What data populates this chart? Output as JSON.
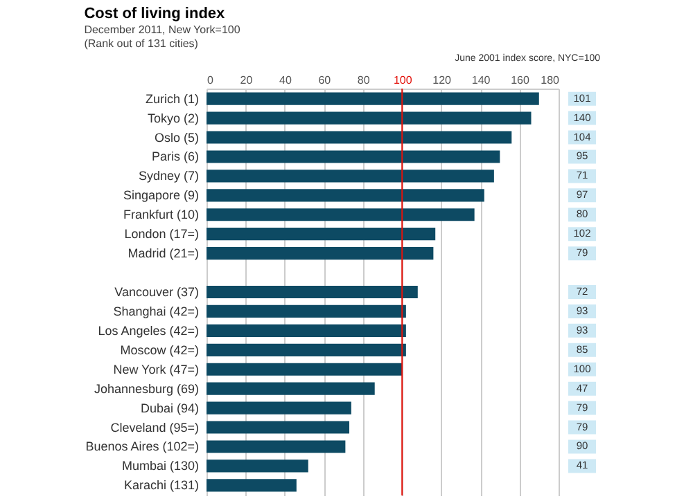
{
  "chart_data": [
    {
      "type": "bar",
      "orientation": "horizontal",
      "title": "Cost of living index",
      "subtitle": "December 2011, New York=100",
      "annotations": [
        "(Rank out of 131 cities)"
      ],
      "categories": [
        "Zurich (1)",
        "Tokyo (2)",
        "Oslo (5)",
        "Paris (6)",
        "Sydney (7)",
        "Singapore (9)",
        "Frankfurt (10)",
        "London (17=)",
        "Madrid (21=)",
        null,
        "Vancouver (37)",
        "Shanghai (42=)",
        "Los Angeles (42=)",
        "Moscow (42=)",
        "New York (47=)",
        "Johannesburg (69)",
        "Dubai (94)",
        "Cleveland (95=)",
        "Buenos Aires (102=)",
        "Mumbai (130)",
        "Karachi (131)"
      ],
      "series": [
        {
          "color": "#0d4a63",
          "values": [
            170,
            166,
            156,
            150,
            147,
            142,
            137,
            117,
            116,
            null,
            108,
            102,
            102,
            102,
            100,
            86,
            74,
            73,
            71,
            52,
            46
          ]
        }
      ],
      "xlim": [
        0,
        180
      ],
      "xticks": [
        0,
        20,
        40,
        60,
        80,
        100,
        120,
        140,
        160,
        180
      ],
      "grid": "x",
      "ref_lines": [
        {
          "axis": "x",
          "value": 100,
          "color": "#e3120b"
        }
      ]
    },
    {
      "type": "other",
      "title": "June 2001 index score, NYC=100",
      "color": "#cde9f5",
      "data_labels": true,
      "values": [
        101,
        140,
        104,
        95,
        71,
        97,
        80,
        102,
        79,
        null,
        72,
        93,
        93,
        85,
        100,
        47,
        79,
        79,
        90,
        41,
        null
      ]
    }
  ]
}
